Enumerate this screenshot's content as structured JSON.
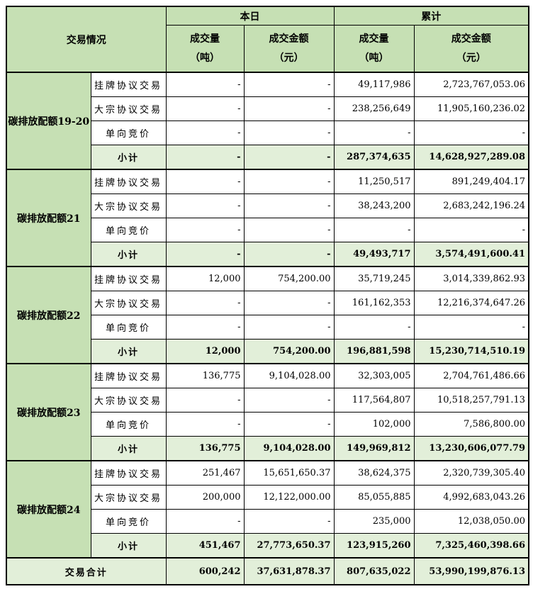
{
  "colors": {
    "header_green": "#c6e0b4",
    "subtotal_green": "#e2efd9",
    "border": "#000000"
  },
  "header": {
    "trading_situation": "交易情况",
    "today": "本日",
    "cumulative": "累计",
    "volume_line1": "成交量",
    "volume_line2": "（吨）",
    "amount_line1": "成交金额",
    "amount_line2": "（元）"
  },
  "groups": [
    {
      "label": "碳排放配额19-20",
      "rows": [
        {
          "label": "挂牌协议交易",
          "tv": "-",
          "ta": "-",
          "cv": "49,117,986",
          "ca": "2,723,767,053.06"
        },
        {
          "label": "大宗协议交易",
          "tv": "-",
          "ta": "-",
          "cv": "238,256,649",
          "ca": "11,905,160,236.02"
        },
        {
          "label": "单向竞价",
          "tv": "-",
          "ta": "-",
          "cv": "-",
          "ca": "-"
        },
        {
          "label": "小计",
          "tv": "-",
          "ta": "-",
          "cv": "287,374,635",
          "ca": "14,628,927,289.08"
        }
      ]
    },
    {
      "label": "碳排放配额21",
      "rows": [
        {
          "label": "挂牌协议交易",
          "tv": "-",
          "ta": "-",
          "cv": "11,250,517",
          "ca": "891,249,404.17"
        },
        {
          "label": "大宗协议交易",
          "tv": "-",
          "ta": "-",
          "cv": "38,243,200",
          "ca": "2,683,242,196.24"
        },
        {
          "label": "单向竞价",
          "tv": "-",
          "ta": "-",
          "cv": "-",
          "ca": "-"
        },
        {
          "label": "小计",
          "tv": "-",
          "ta": "-",
          "cv": "49,493,717",
          "ca": "3,574,491,600.41"
        }
      ]
    },
    {
      "label": "碳排放配额22",
      "rows": [
        {
          "label": "挂牌协议交易",
          "tv": "12,000",
          "ta": "754,200.00",
          "cv": "35,719,245",
          "ca": "3,014,339,862.93"
        },
        {
          "label": "大宗协议交易",
          "tv": "-",
          "ta": "-",
          "cv": "161,162,353",
          "ca": "12,216,374,647.26"
        },
        {
          "label": "单向竞价",
          "tv": "-",
          "ta": "-",
          "cv": "-",
          "ca": "-"
        },
        {
          "label": "小计",
          "tv": "12,000",
          "ta": "754,200.00",
          "cv": "196,881,598",
          "ca": "15,230,714,510.19"
        }
      ]
    },
    {
      "label": "碳排放配额23",
      "rows": [
        {
          "label": "挂牌协议交易",
          "tv": "136,775",
          "ta": "9,104,028.00",
          "cv": "32,303,005",
          "ca": "2,704,761,486.66"
        },
        {
          "label": "大宗协议交易",
          "tv": "-",
          "ta": "-",
          "cv": "117,564,807",
          "ca": "10,518,257,791.13"
        },
        {
          "label": "单向竞价",
          "tv": "-",
          "ta": "-",
          "cv": "102,000",
          "ca": "7,586,800.00"
        },
        {
          "label": "小计",
          "tv": "136,775",
          "ta": "9,104,028.00",
          "cv": "149,969,812",
          "ca": "13,230,606,077.79"
        }
      ]
    },
    {
      "label": "碳排放配额24",
      "rows": [
        {
          "label": "挂牌协议交易",
          "tv": "251,467",
          "ta": "15,651,650.37",
          "cv": "38,624,375",
          "ca": "2,320,739,305.40"
        },
        {
          "label": "大宗协议交易",
          "tv": "200,000",
          "ta": "12,122,000.00",
          "cv": "85,055,885",
          "ca": "4,992,683,043.26"
        },
        {
          "label": "单向竞价",
          "tv": "-",
          "ta": "-",
          "cv": "235,000",
          "ca": "12,038,050.00"
        },
        {
          "label": "小计",
          "tv": "451,467",
          "ta": "27,773,650.37",
          "cv": "123,915,260",
          "ca": "7,325,460,398.66"
        }
      ]
    }
  ],
  "total": {
    "label": "交易合计",
    "tv": "600,242",
    "ta": "37,631,878.37",
    "cv": "807,635,022",
    "ca": "53,990,199,876.13"
  }
}
